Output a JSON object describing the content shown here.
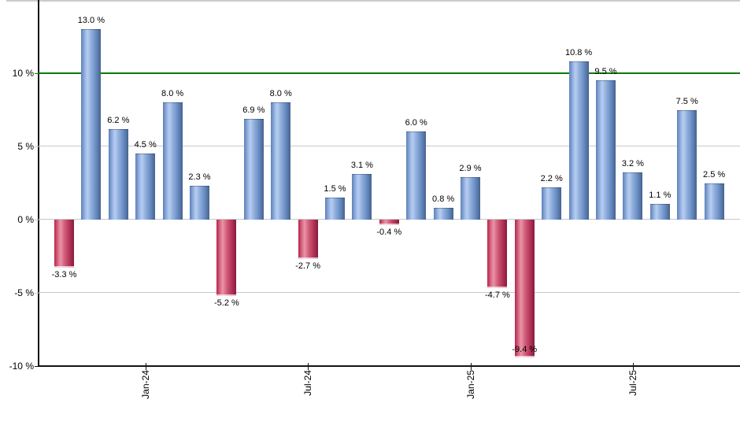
{
  "chart_data": {
    "type": "bar",
    "title": "",
    "xlabel": "",
    "ylabel": "",
    "unit": "%",
    "ylim": [
      -10,
      15
    ],
    "grid": true,
    "legend_position": "none",
    "values": [
      -3.3,
      13.0,
      6.2,
      4.5,
      8.0,
      2.3,
      -5.2,
      6.9,
      8.0,
      -2.7,
      1.5,
      3.1,
      -0.4,
      6.0,
      0.8,
      2.9,
      -4.7,
      -9.4,
      2.2,
      10.8,
      9.5,
      3.2,
      1.1,
      7.5,
      2.5
    ],
    "value_label_suffix": " %",
    "y_ticks": [
      {
        "value": 10,
        "label": "10 %"
      },
      {
        "value": 5,
        "label": "5 %"
      },
      {
        "value": 0,
        "label": "0 %"
      },
      {
        "value": -5,
        "label": "-5 %"
      },
      {
        "value": -10,
        "label": "-10 %"
      }
    ],
    "x_ticks": [
      {
        "bar_index": 3,
        "label": "Jan-24"
      },
      {
        "bar_index": 9,
        "label": "Jul-24"
      },
      {
        "bar_index": 15,
        "label": "Jan-25"
      },
      {
        "bar_index": 21,
        "label": "Jul-25"
      }
    ],
    "reference_line_value": 10,
    "colors": {
      "positive_bar": "#6d92c8",
      "negative_bar": "#c23556",
      "reference_line": "#0a7d0a",
      "gridline": "#c8c8c8",
      "axis": "#141414",
      "top_border": "#cbcbcb",
      "label_text": "#000000"
    }
  }
}
